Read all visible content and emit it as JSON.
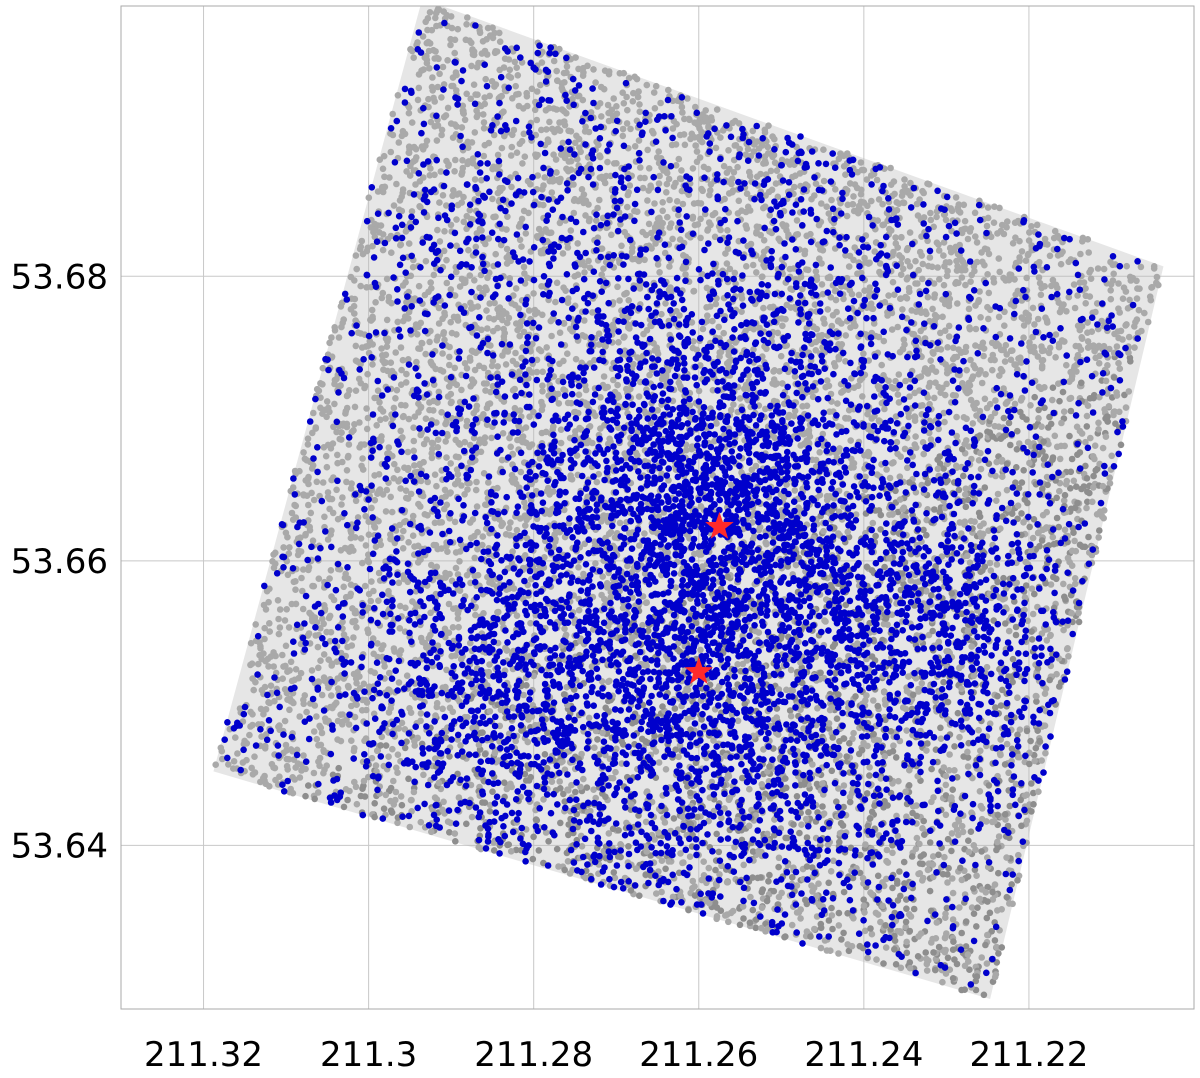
{
  "chart_data": {
    "type": "scatter",
    "title": "",
    "xlabel": "",
    "ylabel": "",
    "x_ticks": [
      "211.32",
      "211.3",
      "211.28",
      "211.26",
      "211.24",
      "211.22"
    ],
    "y_ticks": [
      "53.68",
      "53.66",
      "53.64"
    ],
    "x_tick_values": [
      211.32,
      211.3,
      211.28,
      211.26,
      211.24,
      211.22
    ],
    "y_tick_values": [
      53.68,
      53.66,
      53.64
    ],
    "xlim": [
      211.33,
      211.2
    ],
    "ylim": [
      53.6285,
      53.699
    ],
    "x_inverted": true,
    "grid": true,
    "field_footprint_corners": [
      [
        211.2935,
        53.6995
      ],
      [
        211.2037,
        53.6807
      ],
      [
        211.2247,
        53.6292
      ],
      [
        211.3188,
        53.6452
      ]
    ],
    "series": [
      {
        "marker": "circle",
        "color": "#a9a9a9",
        "distribution": "dense cover over the whole rotated field, darker overlapping toward the lower-right"
      },
      {
        "marker": "circle",
        "color": "#0000cc",
        "distribution": "concentrated around the upper star and in a band across the lower half of the field"
      },
      {
        "marker": "star",
        "color": "#ff2a2a",
        "points": [
          {
            "x": 211.2575,
            "y": 53.6624
          },
          {
            "x": 211.26,
            "y": 53.6522
          }
        ]
      }
    ],
    "colors": {
      "grid": "#c8c8c8",
      "axes": "#aaaaaa",
      "gray_points": "#a9a9a9",
      "blue_points": "#0000cc",
      "stars": "#ff2a2a"
    }
  }
}
